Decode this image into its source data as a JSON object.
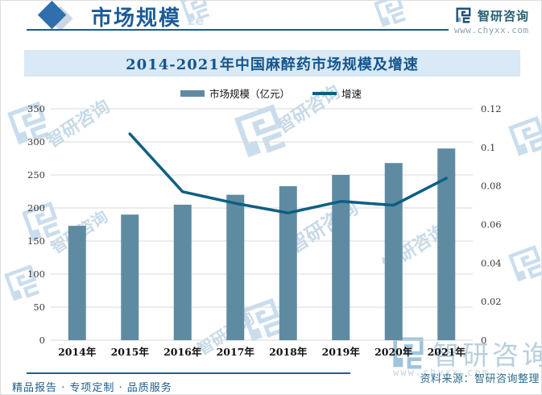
{
  "header": {
    "title": "市场规模",
    "brand": "智研咨询",
    "brand_url": "www.chyxx.com"
  },
  "chart": {
    "title": "2014-2021年中国麻醉药市场规模及增速"
  },
  "chart_data": {
    "type": "combo",
    "title": "2014-2021年中国麻醉药市场规模及增速",
    "categories": [
      "2014年",
      "2015年",
      "2016年",
      "2017年",
      "2018年",
      "2019年",
      "2020年",
      "2021年"
    ],
    "series": [
      {
        "name": "市场规模（亿元）",
        "type": "bar",
        "axis": "left",
        "color": "#5f8ba2",
        "values": [
          173,
          190,
          205,
          220,
          233,
          250,
          268,
          290
        ]
      },
      {
        "name": "增速",
        "type": "line",
        "axis": "right",
        "color": "#0d5f82",
        "values": [
          null,
          0.107,
          0.077,
          0.071,
          0.066,
          0.072,
          0.07,
          0.084
        ]
      }
    ],
    "y_left": {
      "min": 0,
      "max": 350,
      "ticks": [
        0,
        50,
        100,
        150,
        200,
        250,
        300,
        350
      ]
    },
    "y_right": {
      "min": 0,
      "max": 0.12,
      "ticks": [
        0,
        0.02,
        0.04,
        0.06,
        0.08,
        0.1,
        0.12
      ]
    },
    "grid": true,
    "legend_position": "top"
  },
  "footer": {
    "source": "资料来源：智研咨询整理",
    "tagline": "精品报告 · 专项定制 · 品质服务"
  },
  "watermark": {
    "text": "智研咨询",
    "url": "www.chyxx.com",
    "partial": "ze"
  },
  "colors": {
    "header_blue": "#1c5b97",
    "banner_bg": "#d9e9f5",
    "banner_text": "#14568e",
    "bar": "#5f8ba2",
    "line": "#0d5f82",
    "gridline": "#d8d8d8"
  }
}
